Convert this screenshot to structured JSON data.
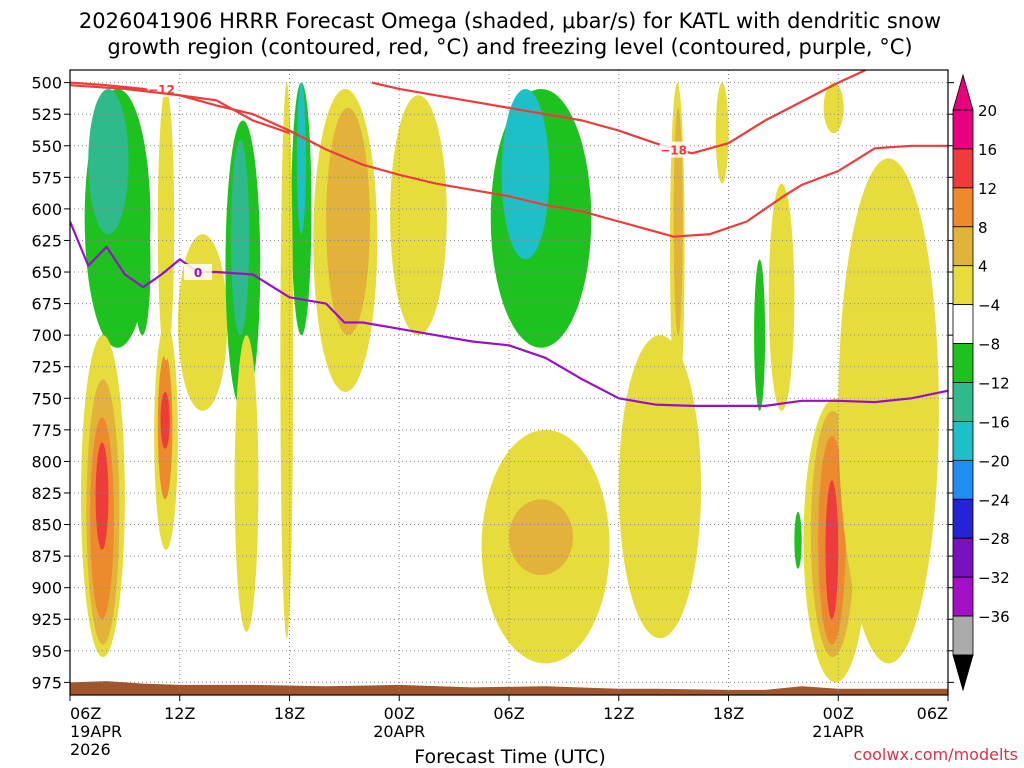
{
  "title": {
    "line1": "2026041906 HRRR Forecast Omega (shaded, μbar/s) for KATL with dendritic snow",
    "line2": "growth region (contoured, red, °C) and freezing level (contoured, purple, °C)"
  },
  "watermark": "coolwx.com/modelts",
  "colors": {
    "snow_contour": "#ee3b3b",
    "freezing_contour": "#9a10c8",
    "terrain": "#a0552d",
    "grid": "#888888"
  },
  "chart_data": {
    "type": "heatmap",
    "title": "2026041906 HRRR Forecast Omega (shaded, μbar/s) for KATL with dendritic snow growth region (contoured, red, °C) and freezing level (contoured, purple, °C)",
    "xlabel": "Forecast Time (UTC)",
    "ylabel": "",
    "xlim": [
      0,
      48
    ],
    "ylim": [
      985,
      490
    ],
    "x_ticks": [
      {
        "hour": 0,
        "label": "06Z",
        "sub1": "19APR",
        "sub2": "2026"
      },
      {
        "hour": 6,
        "label": "12Z",
        "sub1": "",
        "sub2": ""
      },
      {
        "hour": 12,
        "label": "18Z",
        "sub1": "",
        "sub2": ""
      },
      {
        "hour": 18,
        "label": "00Z",
        "sub1": "20APR",
        "sub2": ""
      },
      {
        "hour": 24,
        "label": "06Z",
        "sub1": "",
        "sub2": ""
      },
      {
        "hour": 30,
        "label": "12Z",
        "sub1": "",
        "sub2": ""
      },
      {
        "hour": 36,
        "label": "18Z",
        "sub1": "",
        "sub2": ""
      },
      {
        "hour": 42,
        "label": "00Z",
        "sub1": "21APR",
        "sub2": ""
      },
      {
        "hour": 48,
        "label": "06Z",
        "sub1": "",
        "sub2": ""
      }
    ],
    "y_ticks": [
      500,
      525,
      550,
      575,
      600,
      625,
      650,
      675,
      700,
      725,
      750,
      775,
      800,
      825,
      850,
      875,
      900,
      925,
      950,
      975
    ],
    "colorbar": {
      "units": "μbar/s",
      "labels": [
        "20",
        "16",
        "12",
        "8",
        "4",
        "−4",
        "−8",
        "−12",
        "−16",
        "−20",
        "−24",
        "−28",
        "−32",
        "−36"
      ],
      "colors": [
        "#e8007f",
        "#ee3b3b",
        "#ee8a2e",
        "#e3b23a",
        "#e6dd3d",
        "#ffffff",
        "#1ec21e",
        "#2eba8a",
        "#1ec0c8",
        "#1e8ef0",
        "#2424d6",
        "#7a10c0",
        "#a410c8",
        "#aaaaaa"
      ]
    },
    "omega_cells": [
      {
        "t0": 0.8,
        "t1": 4.4,
        "p0": 505,
        "p1": 710,
        "value": -6
      },
      {
        "t0": 1.0,
        "t1": 3.2,
        "p0": 505,
        "p1": 620,
        "value": -10
      },
      {
        "t0": 3.5,
        "t1": 4.4,
        "p0": 590,
        "p1": 700,
        "value": -6
      },
      {
        "t0": 0.6,
        "t1": 3.0,
        "p0": 700,
        "p1": 955,
        "value": 6
      },
      {
        "t0": 0.9,
        "t1": 2.7,
        "p0": 735,
        "p1": 945,
        "value": 10
      },
      {
        "t0": 1.1,
        "t1": 2.4,
        "p0": 765,
        "p1": 925,
        "value": 14
      },
      {
        "t0": 1.4,
        "t1": 2.1,
        "p0": 785,
        "p1": 870,
        "value": 18
      },
      {
        "t0": 4.6,
        "t1": 5.9,
        "p0": 690,
        "p1": 870,
        "value": 7
      },
      {
        "t0": 4.8,
        "t1": 5.6,
        "p0": 715,
        "p1": 830,
        "value": 13
      },
      {
        "t0": 4.95,
        "t1": 5.45,
        "p0": 745,
        "p1": 790,
        "value": 19
      },
      {
        "t0": 4.8,
        "t1": 5.7,
        "p0": 505,
        "p1": 720,
        "value": 6
      },
      {
        "t0": 5.9,
        "t1": 8.6,
        "p0": 620,
        "p1": 760,
        "value": 5
      },
      {
        "t0": 8.5,
        "t1": 10.4,
        "p0": 530,
        "p1": 760,
        "value": -6
      },
      {
        "t0": 8.8,
        "t1": 9.8,
        "p0": 545,
        "p1": 700,
        "value": -10
      },
      {
        "t0": 9.0,
        "t1": 10.3,
        "p0": 700,
        "p1": 935,
        "value": 5
      },
      {
        "t0": 12.1,
        "t1": 13.2,
        "p0": 500,
        "p1": 700,
        "value": -6
      },
      {
        "t0": 12.4,
        "t1": 12.9,
        "p0": 500,
        "p1": 620,
        "value": -12
      },
      {
        "t0": 11.5,
        "t1": 12.2,
        "p0": 500,
        "p1": 940,
        "value": 5
      },
      {
        "t0": 13.3,
        "t1": 16.8,
        "p0": 505,
        "p1": 745,
        "value": 6
      },
      {
        "t0": 14.0,
        "t1": 16.4,
        "p0": 520,
        "p1": 700,
        "value": 10
      },
      {
        "t0": 17.5,
        "t1": 20.6,
        "p0": 510,
        "p1": 700,
        "value": 5
      },
      {
        "t0": 23.0,
        "t1": 28.5,
        "p0": 505,
        "p1": 710,
        "value": -7
      },
      {
        "t0": 23.6,
        "t1": 26.2,
        "p0": 505,
        "p1": 640,
        "value": -13
      },
      {
        "t0": 22.5,
        "t1": 29.5,
        "p0": 775,
        "p1": 960,
        "value": 6
      },
      {
        "t0": 24.0,
        "t1": 27.5,
        "p0": 830,
        "p1": 890,
        "value": 10
      },
      {
        "t0": 30.0,
        "t1": 34.5,
        "p0": 700,
        "p1": 940,
        "value": 5
      },
      {
        "t0": 32.8,
        "t1": 33.6,
        "p0": 500,
        "p1": 760,
        "value": 6
      },
      {
        "t0": 33.0,
        "t1": 33.5,
        "p0": 520,
        "p1": 700,
        "value": 10
      },
      {
        "t0": 35.3,
        "t1": 36.0,
        "p0": 500,
        "p1": 580,
        "value": 5
      },
      {
        "t0": 37.4,
        "t1": 38.0,
        "p0": 640,
        "p1": 760,
        "value": -6
      },
      {
        "t0": 38.2,
        "t1": 39.6,
        "p0": 580,
        "p1": 760,
        "value": 5
      },
      {
        "t0": 39.6,
        "t1": 40.0,
        "p0": 840,
        "p1": 885,
        "value": -6
      },
      {
        "t0": 40.1,
        "t1": 43.6,
        "p0": 750,
        "p1": 975,
        "value": 6
      },
      {
        "t0": 40.5,
        "t1": 42.9,
        "p0": 760,
        "p1": 955,
        "value": 10
      },
      {
        "t0": 40.9,
        "t1": 42.4,
        "p0": 780,
        "p1": 945,
        "value": 14
      },
      {
        "t0": 41.3,
        "t1": 42.0,
        "p0": 815,
        "p1": 925,
        "value": 18
      },
      {
        "t0": 42.0,
        "t1": 47.5,
        "p0": 560,
        "p1": 960,
        "value": 5
      },
      {
        "t0": 41.2,
        "t1": 42.3,
        "p0": 500,
        "p1": 540,
        "value": 5
      }
    ],
    "series": [
      {
        "name": "-12 °C",
        "kind": "snow",
        "label": "−12",
        "label_at": [
          5.0,
          505
        ],
        "points": [
          [
            0,
            500
          ],
          [
            2,
            502
          ],
          [
            4,
            505
          ],
          [
            6,
            510
          ],
          [
            8,
            518
          ],
          [
            10,
            525
          ],
          [
            12,
            538
          ],
          [
            14,
            553
          ],
          [
            16,
            565
          ],
          [
            18,
            573
          ],
          [
            20,
            580
          ],
          [
            22,
            585
          ],
          [
            24,
            590
          ],
          [
            26,
            597
          ],
          [
            28,
            602
          ],
          [
            30,
            610
          ],
          [
            32,
            618
          ],
          [
            33,
            622
          ],
          [
            35,
            620
          ],
          [
            37,
            610
          ],
          [
            39,
            590
          ],
          [
            40,
            581
          ],
          [
            42,
            570
          ],
          [
            44,
            552
          ],
          [
            46,
            550
          ],
          [
            48,
            550
          ]
        ]
      },
      {
        "name": "-12 °C (upper)",
        "kind": "snow",
        "label": "",
        "label_at": null,
        "points": [
          [
            0,
            502
          ],
          [
            3,
            505
          ],
          [
            6,
            510
          ],
          [
            8,
            514
          ],
          [
            10,
            530
          ],
          [
            12,
            540
          ]
        ]
      },
      {
        "name": "-18 °C",
        "kind": "snow",
        "label": "−18",
        "label_at": [
          33.0,
          553
        ],
        "points": [
          [
            16.5,
            500
          ],
          [
            18,
            505
          ],
          [
            20,
            510
          ],
          [
            22,
            515
          ],
          [
            24,
            520
          ],
          [
            26,
            525
          ],
          [
            28,
            530
          ],
          [
            30,
            538
          ],
          [
            32,
            548
          ],
          [
            34,
            556
          ],
          [
            36,
            548
          ],
          [
            38,
            530
          ],
          [
            40,
            515
          ],
          [
            42,
            500
          ],
          [
            43.5,
            490
          ]
        ]
      },
      {
        "name": "0 °C freezing level",
        "kind": "freezing",
        "label": "0",
        "label_at": [
          7.0,
          650
        ],
        "points": [
          [
            0,
            610
          ],
          [
            1,
            645
          ],
          [
            2,
            630
          ],
          [
            3,
            652
          ],
          [
            4,
            662
          ],
          [
            5,
            652
          ],
          [
            6,
            640
          ],
          [
            7,
            650
          ],
          [
            8,
            650
          ],
          [
            10,
            652
          ],
          [
            12,
            670
          ],
          [
            14,
            675
          ],
          [
            15,
            690
          ],
          [
            16,
            690
          ],
          [
            18,
            695
          ],
          [
            20,
            700
          ],
          [
            22,
            705
          ],
          [
            24,
            708
          ],
          [
            26,
            718
          ],
          [
            28,
            735
          ],
          [
            30,
            750
          ],
          [
            32,
            755
          ],
          [
            34,
            756
          ],
          [
            36,
            756
          ],
          [
            38,
            756
          ],
          [
            40,
            752
          ],
          [
            42,
            752
          ],
          [
            44,
            753
          ],
          [
            46,
            750
          ],
          [
            48,
            744
          ]
        ]
      }
    ],
    "terrain": [
      [
        0,
        975
      ],
      [
        2,
        974
      ],
      [
        4,
        976
      ],
      [
        6,
        977
      ],
      [
        10,
        977
      ],
      [
        14,
        978
      ],
      [
        18,
        977
      ],
      [
        22,
        979
      ],
      [
        26,
        978
      ],
      [
        30,
        980
      ],
      [
        32,
        980
      ],
      [
        36,
        981
      ],
      [
        38,
        981
      ],
      [
        40,
        978
      ],
      [
        42,
        980
      ],
      [
        44,
        980
      ],
      [
        48,
        980
      ]
    ]
  }
}
